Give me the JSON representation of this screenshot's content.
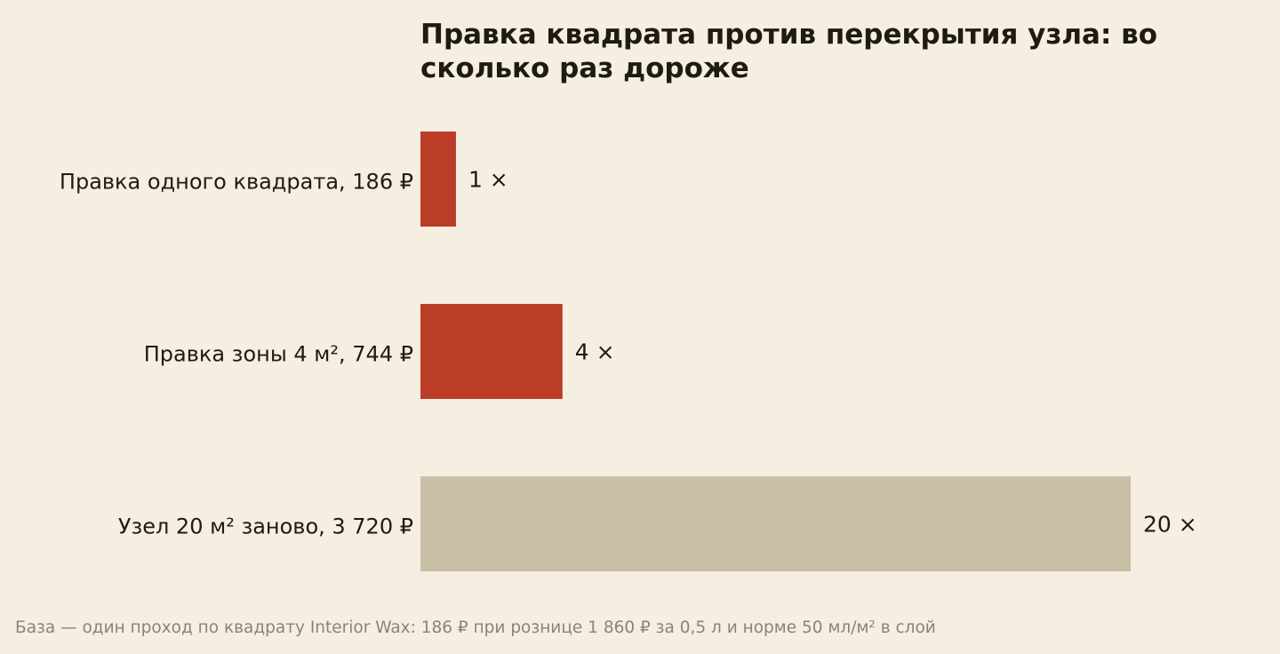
{
  "chart_data": {
    "type": "bar",
    "orientation": "horizontal",
    "title": "Правка квадрата против перекрытия узла: во сколько раз дороже",
    "categories": [
      "Правка одного квадрата, 186 ₽",
      "Правка зоны 4 м², 744 ₽",
      "Узел 20 м² заново, 3 720 ₽"
    ],
    "values": [
      1,
      4,
      20
    ],
    "value_labels": [
      "1 ×",
      "4 ×",
      "20 ×"
    ],
    "bar_colors": [
      "#bb3c27",
      "#bb3c27",
      "#c9bfa7"
    ],
    "xlim": [
      0,
      20
    ],
    "grid": false,
    "legend": "none"
  },
  "footnote": "База — один проход по квадрату Interior Wax: 186 ₽ при рознице 1 860 ₽ за 0,5 л и норме 50 мл/м² в слой"
}
